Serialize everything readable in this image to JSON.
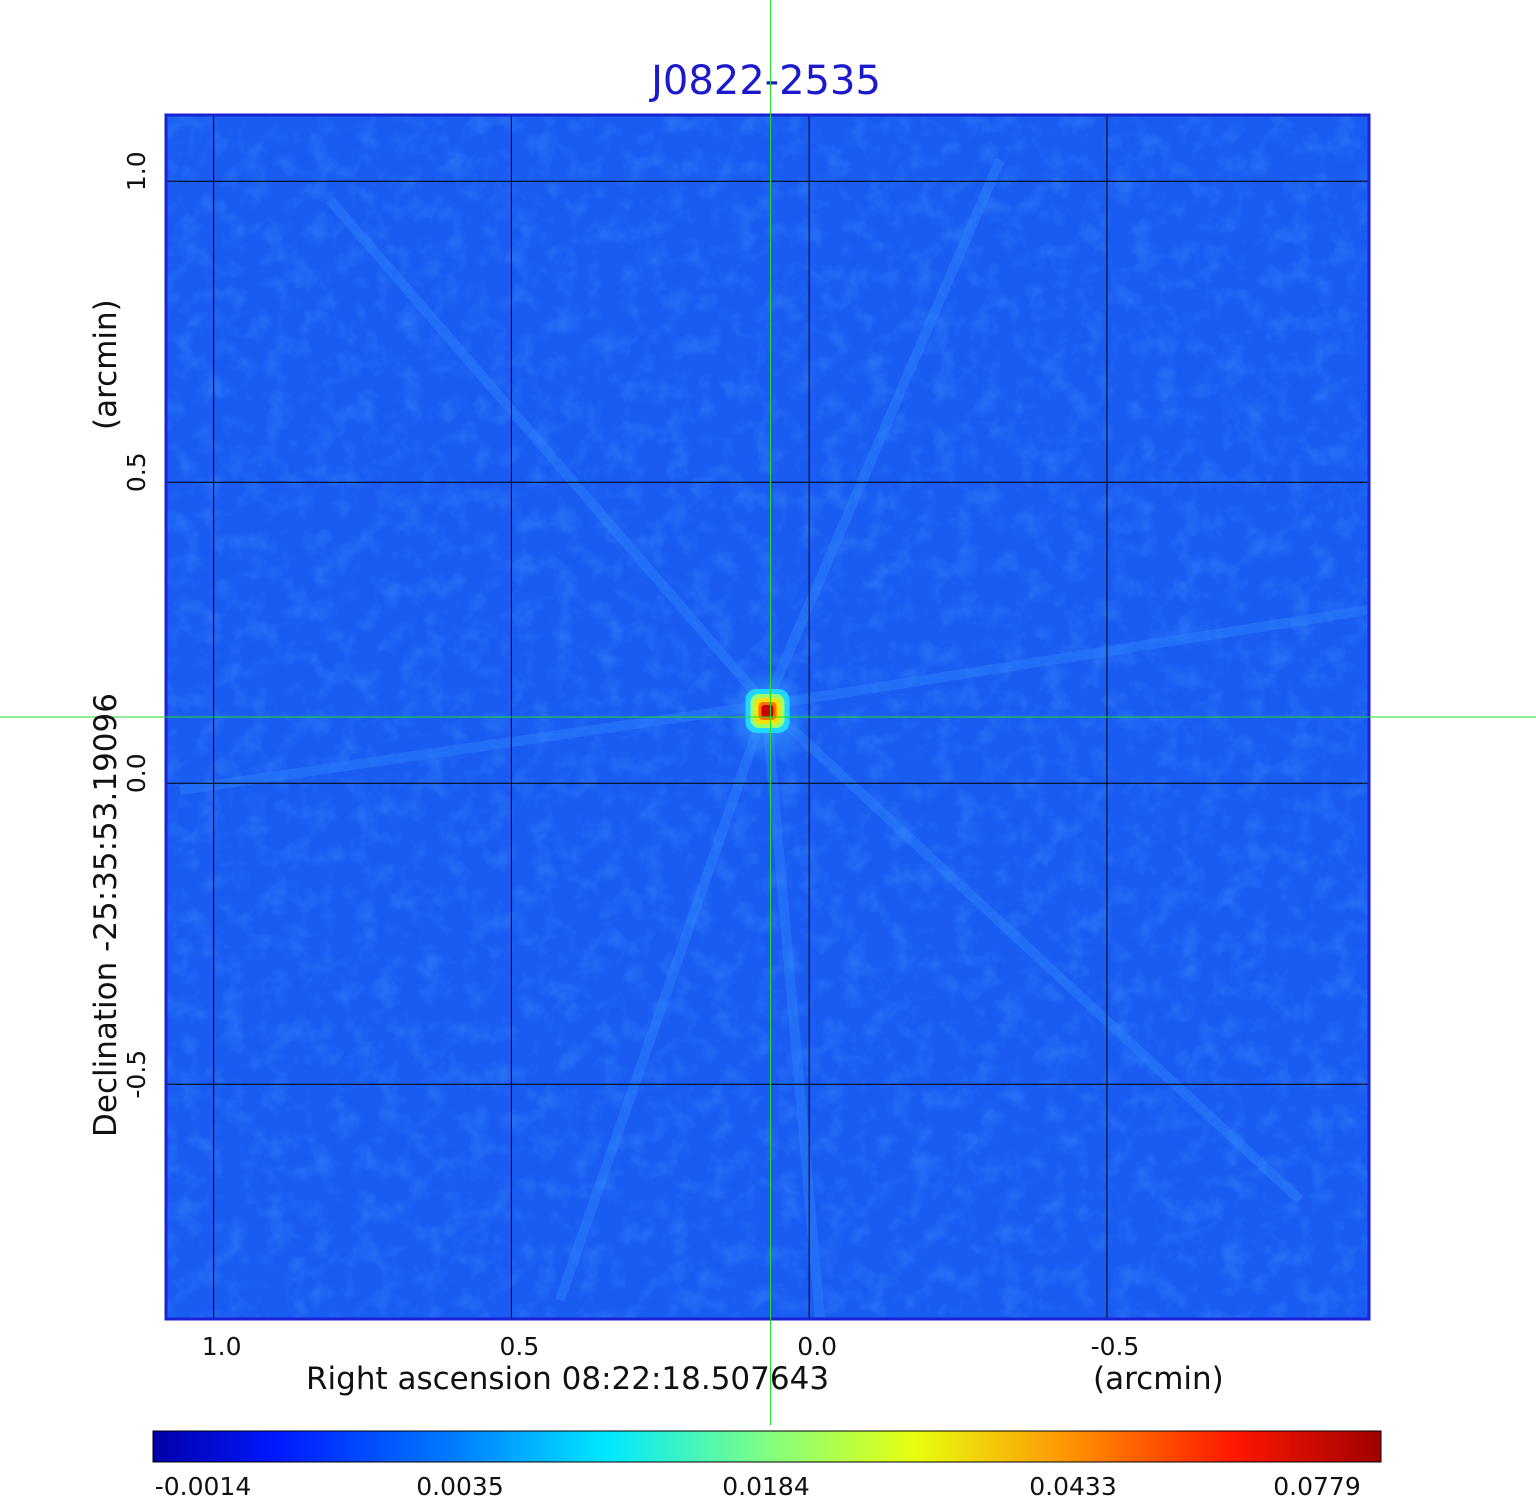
{
  "chart_data": {
    "type": "heatmap",
    "title": "J0822-2535",
    "xlabel": "Right ascension  08:22:18.507643",
    "xunit": "(arcmin)",
    "ylabel": "Declination  -25:35:53.19096",
    "yunit": "(arcmin)",
    "xlim": [
      1.08,
      -0.94
    ],
    "ylim": [
      -0.89,
      1.11
    ],
    "x_ticks": [
      "1.0",
      "0.5",
      "0.0",
      "-0.5"
    ],
    "x_tick_values": [
      1.0,
      0.5,
      0.0,
      -0.5
    ],
    "y_ticks": [
      "-0.5",
      "0.0",
      "0.5",
      "1.0"
    ],
    "y_tick_values": [
      -0.5,
      0.0,
      0.5,
      1.0
    ],
    "grid": true,
    "colormap": "jet",
    "colorbar_ticks": [
      "-0.0014",
      "0.0035",
      "0.0184",
      "0.0433",
      "0.0779"
    ],
    "value_range": [
      -0.0014,
      0.0779
    ],
    "crosshair": {
      "x": 0.065,
      "y": 0.11
    },
    "source": {
      "name": "J0822-2535",
      "ra_offset_arcmin": 0.07,
      "dec_offset_arcmin": 0.12,
      "peak": 0.0779
    },
    "colors": {
      "background": "#1a5cf2",
      "frame": "#1a22d6",
      "grid": "#000000",
      "crosshair": "#22dd22",
      "title": "#1a1acc"
    }
  }
}
